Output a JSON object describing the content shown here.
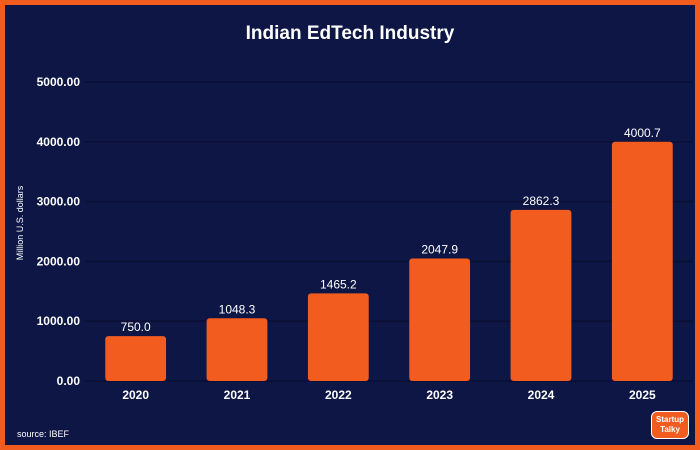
{
  "chart_data": {
    "type": "bar",
    "title": "Indian EdTech Industry",
    "ylabel": "Million U.S. dollars",
    "xlabel": "",
    "categories": [
      "2020",
      "2021",
      "2022",
      "2023",
      "2024",
      "2025"
    ],
    "values": [
      750.0,
      1048.3,
      1465.2,
      2047.9,
      2862.3,
      4000.7
    ],
    "value_labels": [
      "750.0",
      "1048.3",
      "1465.2",
      "2047.9",
      "2862.3",
      "4000.7"
    ],
    "yticks": [
      0,
      1000,
      2000,
      3000,
      4000,
      5000
    ],
    "ytick_labels": [
      "0.00",
      "1000.00",
      "2000.00",
      "3000.00",
      "4000.00",
      "5000.00"
    ],
    "ylim": [
      0,
      5000
    ],
    "grid": true,
    "legend": "none"
  },
  "source": "source: IBEF",
  "logo": {
    "line1": "Startup",
    "line2": "Talky"
  },
  "colors": {
    "background": "#0d1645",
    "border": "#f25c1e",
    "bar": "#f25c1e",
    "text": "#ffffff",
    "grid": "#0a0f33"
  }
}
